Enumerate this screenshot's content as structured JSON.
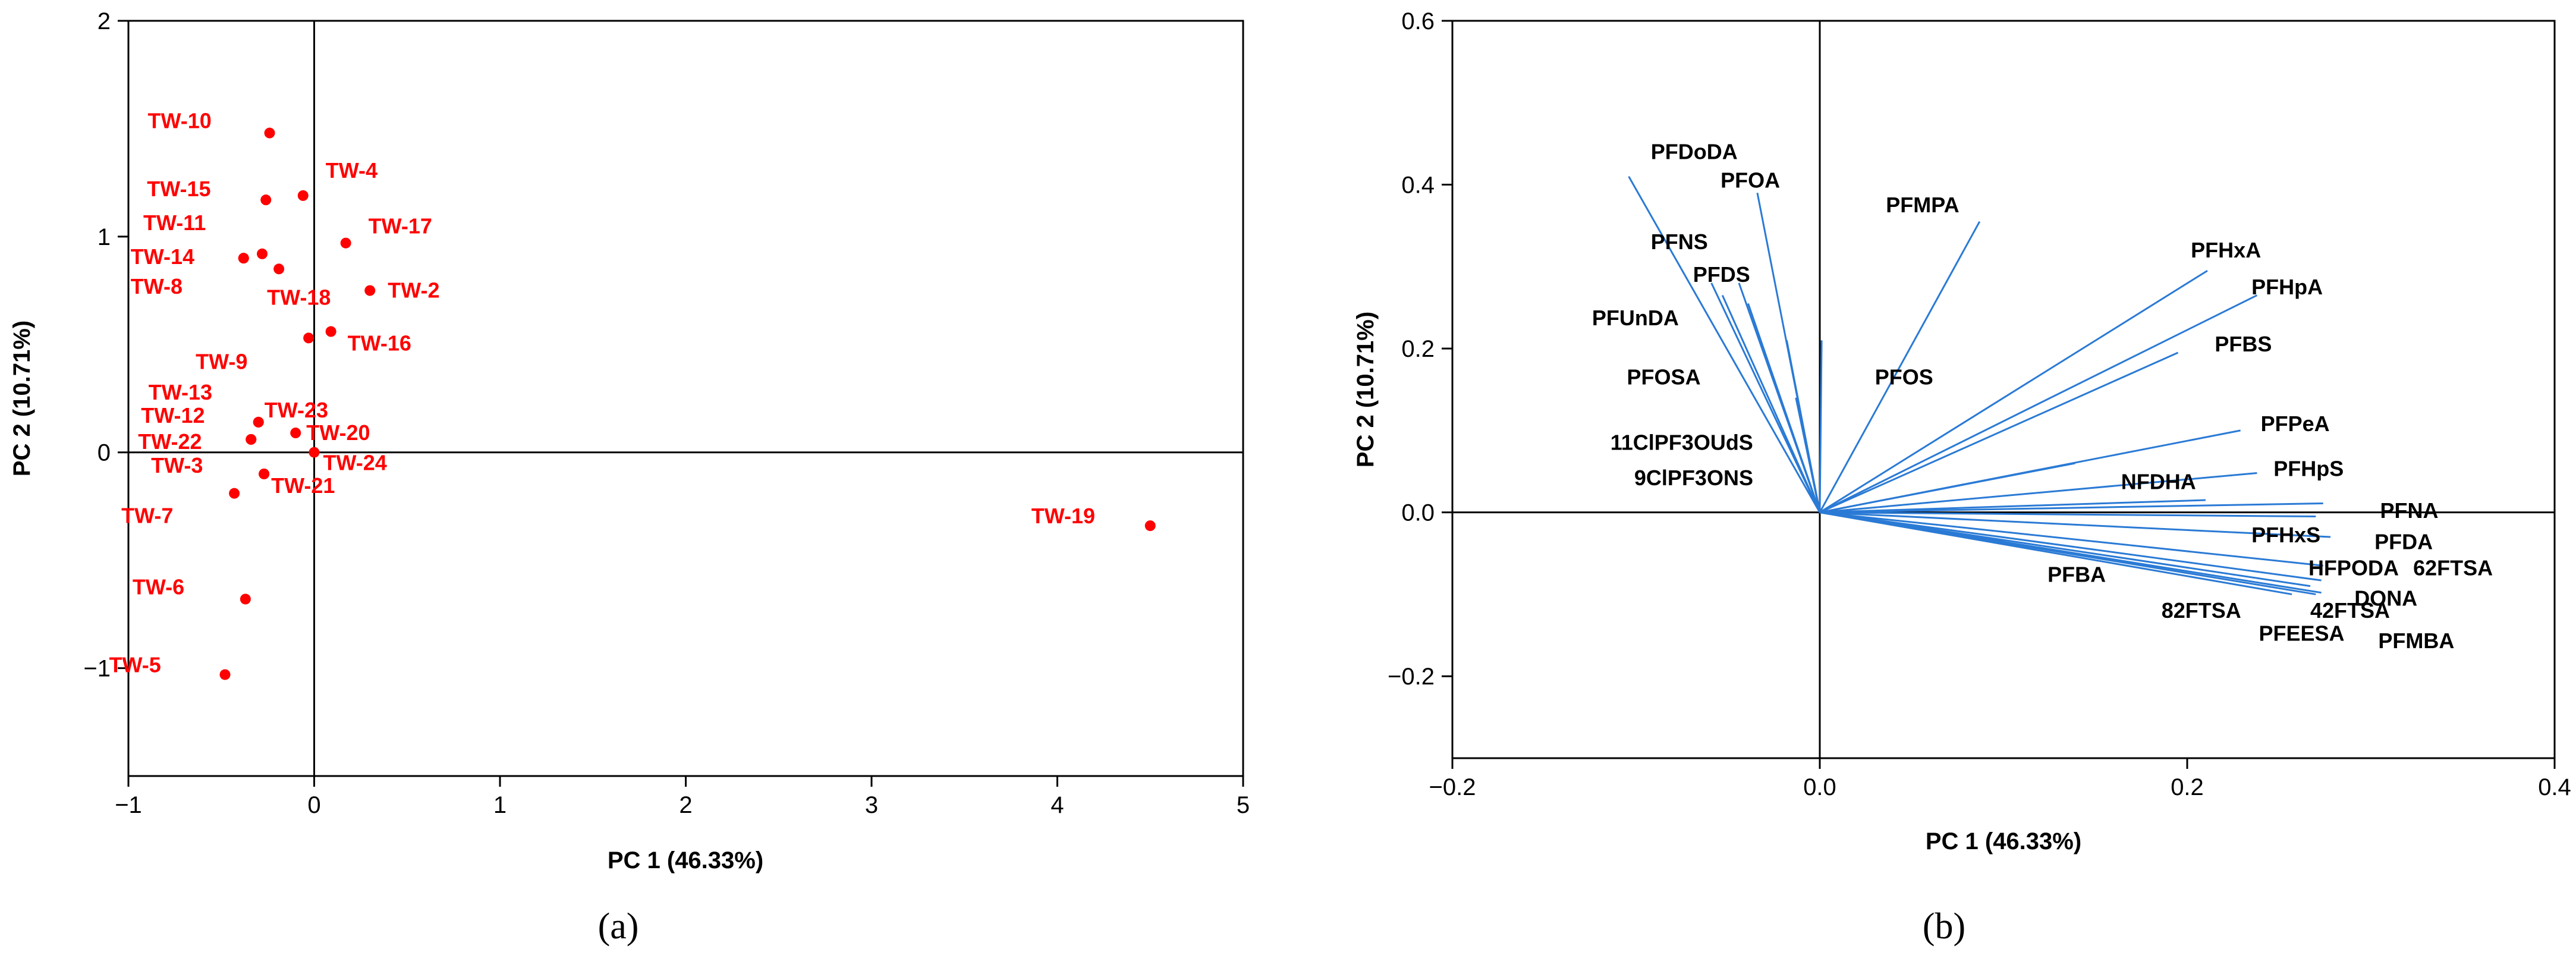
{
  "chart_data": [
    {
      "type": "scatter",
      "panel": "a",
      "xlabel": "PC 1 (46.33%)",
      "ylabel": "PC 2 (10.71%)",
      "xlim": [
        -1,
        5
      ],
      "ylim": [
        -1.5,
        2
      ],
      "xticks": [
        -1,
        0,
        1,
        2,
        3,
        4,
        5
      ],
      "yticks": [
        -1,
        0,
        1,
        2
      ],
      "xtick_labels": [
        "−1",
        "0",
        "1",
        "2",
        "3",
        "4",
        "5"
      ],
      "ytick_labels": [
        "−1",
        "0",
        "1",
        "2"
      ],
      "zero_lines": true,
      "color": "#ff0000",
      "points": [
        {
          "label": "TW-10",
          "x": -0.24,
          "y": 1.48
        },
        {
          "label": "TW-4",
          "x": -0.06,
          "y": 1.19
        },
        {
          "label": "TW-15",
          "x": -0.26,
          "y": 1.17
        },
        {
          "label": "TW-17",
          "x": 0.17,
          "y": 0.97
        },
        {
          "label": "TW-11",
          "x": -0.28,
          "y": 0.92
        },
        {
          "label": "TW-14",
          "x": -0.38,
          "y": 0.9
        },
        {
          "label": "TW-18",
          "x": -0.19,
          "y": 0.85
        },
        {
          "label": "TW-2",
          "x": 0.3,
          "y": 0.75
        },
        {
          "label": "TW-8",
          "x": -0.38,
          "y": 0.9
        },
        {
          "label": "TW-16",
          "x": 0.09,
          "y": 0.56
        },
        {
          "label": "TW-9",
          "x": -0.03,
          "y": 0.53
        },
        {
          "label": "TW-13",
          "x": -0.3,
          "y": 0.14
        },
        {
          "label": "TW-23",
          "x": -0.3,
          "y": 0.14
        },
        {
          "label": "TW-12",
          "x": -0.34,
          "y": 0.06
        },
        {
          "label": "TW-20",
          "x": -0.1,
          "y": 0.09
        },
        {
          "label": "TW-22",
          "x": -0.34,
          "y": 0.06
        },
        {
          "label": "TW-24",
          "x": 0.0,
          "y": 0.0
        },
        {
          "label": "TW-3",
          "x": -0.27,
          "y": -0.1
        },
        {
          "label": "TW-21",
          "x": -0.27,
          "y": -0.1
        },
        {
          "label": "TW-7",
          "x": -0.43,
          "y": -0.19
        },
        {
          "label": "TW-19",
          "x": 4.5,
          "y": -0.34
        },
        {
          "label": "TW-6",
          "x": -0.37,
          "y": -0.68
        },
        {
          "label": "TW-5",
          "x": -0.48,
          "y": -1.03
        }
      ]
    },
    {
      "type": "biplot-loadings",
      "panel": "b",
      "xlabel": "PC 1 (46.33%)",
      "ylabel": "PC 2 (10.71%)",
      "xlim": [
        -0.2,
        0.4
      ],
      "ylim": [
        -0.3,
        0.6
      ],
      "xticks": [
        -0.2,
        0.0,
        0.2,
        0.4
      ],
      "yticks": [
        -0.2,
        0.0,
        0.2,
        0.4,
        0.6
      ],
      "xtick_labels": [
        "−0.2",
        "0.0",
        "0.2",
        "0.4"
      ],
      "ytick_labels": [
        "−0.2",
        "0.0",
        "0.2",
        "0.4",
        "0.6"
      ],
      "zero_lines": true,
      "color": "#2a7ad5",
      "vectors": [
        {
          "label": "PFDoDA",
          "x": -0.104,
          "y": 0.41
        },
        {
          "label": "PFOA",
          "x": -0.034,
          "y": 0.39
        },
        {
          "label": "PFMPA",
          "x": 0.087,
          "y": 0.355
        },
        {
          "label": "PFNS",
          "x": -0.059,
          "y": 0.28
        },
        {
          "label": "PFDS",
          "x": -0.044,
          "y": 0.28
        },
        {
          "label": "PFHxA",
          "x": 0.211,
          "y": 0.295
        },
        {
          "label": "PFHpA",
          "x": 0.238,
          "y": 0.265
        },
        {
          "label": "PFUnDA",
          "x": -0.053,
          "y": 0.265
        },
        {
          "label": "PFBS",
          "x": 0.195,
          "y": 0.195
        },
        {
          "label": "PFOS",
          "x": 0.001,
          "y": 0.21
        },
        {
          "label": "PFOSA",
          "x": -0.039,
          "y": 0.255
        },
        {
          "label": "11ClPF3OUdS",
          "x": -0.013,
          "y": 0.14
        },
        {
          "label": "9ClPF3ONS",
          "x": -0.018,
          "y": 0.21
        },
        {
          "label": "PFPeA",
          "x": 0.229,
          "y": 0.1
        },
        {
          "label": "PFHpS",
          "x": 0.238,
          "y": 0.048
        },
        {
          "label": "NFDHA",
          "x": 0.139,
          "y": 0.06
        },
        {
          "label": "PFNA",
          "x": 0.274,
          "y": 0.011
        },
        {
          "label": "PFHxS",
          "x": 0.21,
          "y": 0.015
        },
        {
          "label": "PFDA",
          "x": 0.27,
          "y": -0.005
        },
        {
          "label": "HFPODA",
          "x": 0.278,
          "y": -0.03
        },
        {
          "label": "62FTSA",
          "x": 0.274,
          "y": -0.065
        },
        {
          "label": "DONA",
          "x": 0.273,
          "y": -0.083
        },
        {
          "label": "PFBA",
          "x": 0.1,
          "y": -0.035
        },
        {
          "label": "42FTSA",
          "x": 0.267,
          "y": -0.09
        },
        {
          "label": "82FTSA",
          "x": 0.257,
          "y": -0.1
        },
        {
          "label": "PFEESA",
          "x": 0.273,
          "y": -0.098
        },
        {
          "label": "PFMBA",
          "x": 0.27,
          "y": -0.1
        }
      ]
    }
  ],
  "captions": [
    "(a)",
    "(b)"
  ]
}
